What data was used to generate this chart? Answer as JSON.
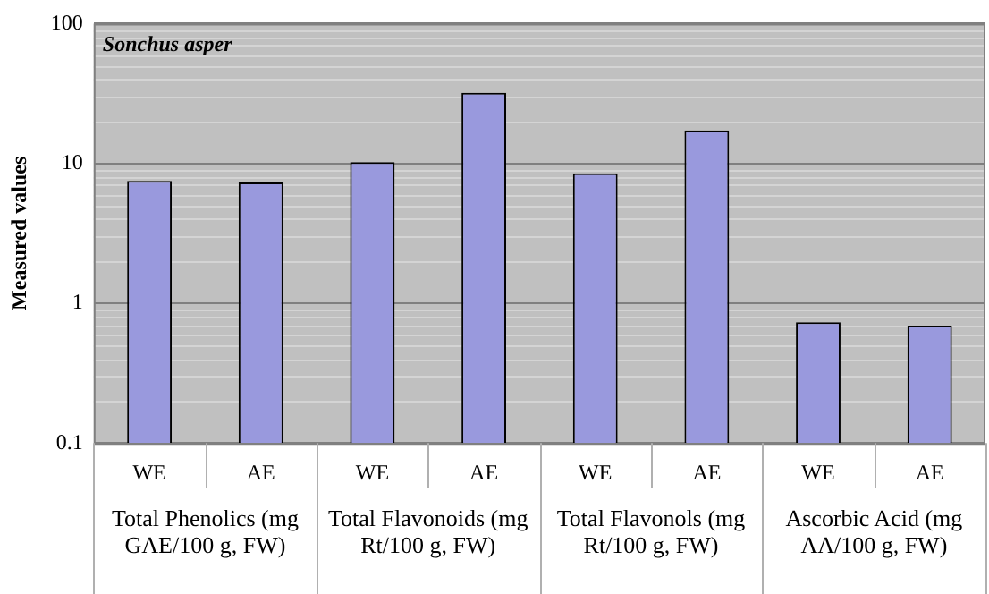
{
  "chart_data": {
    "type": "bar",
    "title": "Sonchus asper",
    "ylabel": "Measured values",
    "categories": [
      "WE",
      "AE",
      "WE",
      "AE",
      "WE",
      "AE",
      "WE",
      "AE"
    ],
    "values": [
      7.5,
      7.3,
      10.2,
      32,
      8.5,
      17.2,
      0.73,
      0.69
    ],
    "color": "#9999dd",
    "log": true,
    "ylim": [
      0.1,
      100
    ],
    "yticks": [
      0.1,
      1,
      10,
      100
    ],
    "grid": "y",
    "annotations": [
      "Total Phenolics (mg GAE/100 g, FW)",
      "Total Flavonoids (mg Rt/100 g, FW)",
      "Total Flavonols (mg Rt/100 g, FW)",
      "Ascorbic Acid (mg AA/100 g, FW)"
    ]
  }
}
